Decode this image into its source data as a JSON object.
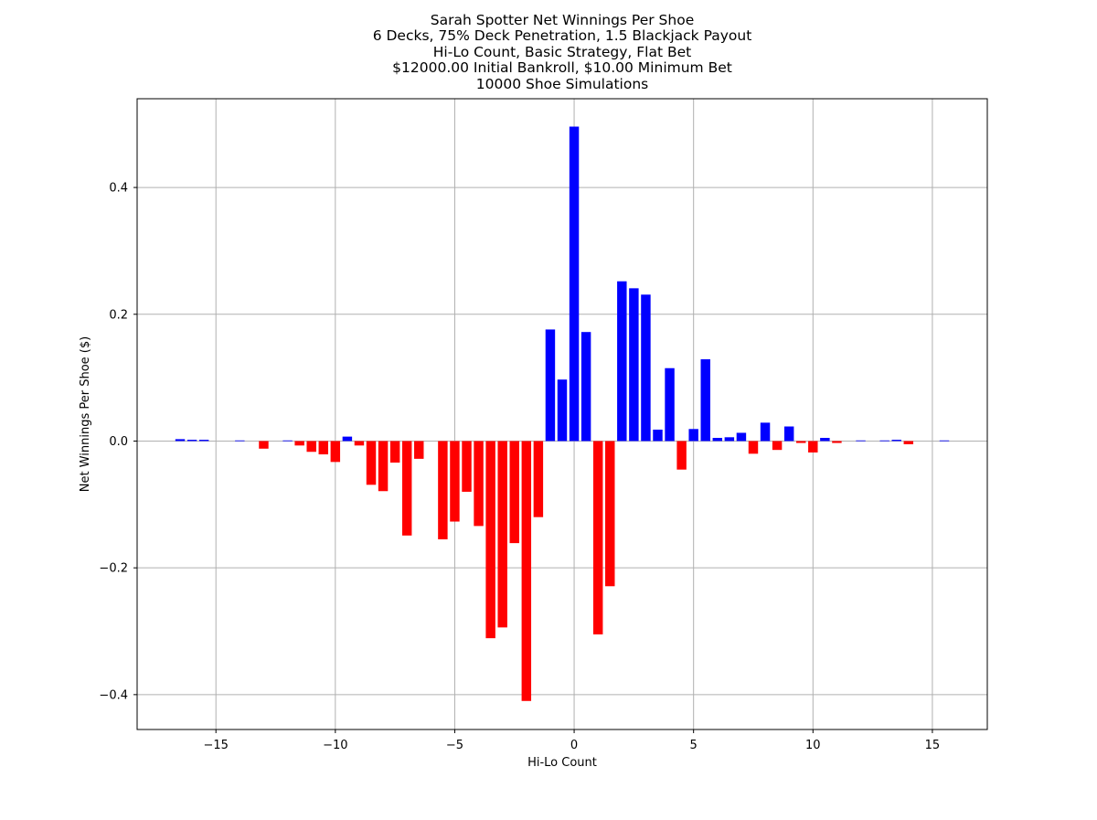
{
  "chart_data": {
    "type": "bar",
    "title_lines": [
      "Sarah Spotter Net Winnings Per Shoe",
      "6 Decks, 75% Deck Penetration, 1.5 Blackjack Payout",
      "Hi-Lo Count, Basic Strategy, Flat Bet",
      "$12000.00 Initial Bankroll, $10.00 Minimum Bet",
      "10000 Shoe Simulations"
    ],
    "xlabel": "Hi-Lo Count",
    "ylabel": "Net Winnings Per Shoe ($)",
    "xlim": [
      -18.3,
      17.3
    ],
    "ylim": [
      -0.455,
      0.54
    ],
    "xticks": [
      -15,
      -10,
      -5,
      0,
      5,
      10,
      15
    ],
    "xtick_labels": [
      "−15",
      "−10",
      "−5",
      "0",
      "5",
      "10",
      "15"
    ],
    "yticks": [
      -0.4,
      -0.2,
      0.0,
      0.2,
      0.4
    ],
    "ytick_labels": [
      "−0.4",
      "−0.2",
      "0.0",
      "0.2",
      "0.4"
    ],
    "grid": true,
    "bar_width": 0.4,
    "colors": {
      "positive": "#0000ff",
      "negative": "#ff0000",
      "grid": "#b0b0b0"
    },
    "x": [
      -16.5,
      -16,
      -15.5,
      -14,
      -13,
      -12,
      -11.5,
      -11,
      -10.5,
      -10,
      -9.5,
      -9,
      -8.5,
      -8,
      -7.5,
      -7,
      -6.5,
      -5.5,
      -5,
      -4.5,
      -4,
      -3.5,
      -3,
      -2.5,
      -2,
      -1.5,
      -1,
      -0.5,
      0,
      0.5,
      1,
      1.5,
      2,
      2.5,
      3,
      3.5,
      4,
      4.5,
      5,
      5.5,
      6,
      6.5,
      7,
      7.5,
      8,
      8.5,
      9,
      9.5,
      10,
      10.5,
      11,
      12,
      13,
      13.5,
      14,
      15.5
    ],
    "values": [
      0.003,
      0.002,
      0.002,
      0.001,
      -0.012,
      0.001,
      -0.007,
      -0.017,
      -0.021,
      -0.033,
      0.007,
      -0.007,
      -0.069,
      -0.079,
      -0.034,
      -0.149,
      -0.028,
      -0.155,
      -0.127,
      -0.08,
      -0.134,
      -0.311,
      -0.294,
      -0.161,
      -0.41,
      -0.12,
      0.176,
      0.097,
      0.496,
      0.172,
      -0.305,
      -0.229,
      0.252,
      0.241,
      0.231,
      0.018,
      0.115,
      -0.045,
      0.019,
      0.129,
      0.005,
      0.006,
      0.013,
      -0.02,
      0.029,
      -0.014,
      0.023,
      -0.003,
      -0.018,
      0.005,
      -0.003,
      0.001,
      0.001,
      0.002,
      -0.005,
      0.001
    ]
  }
}
